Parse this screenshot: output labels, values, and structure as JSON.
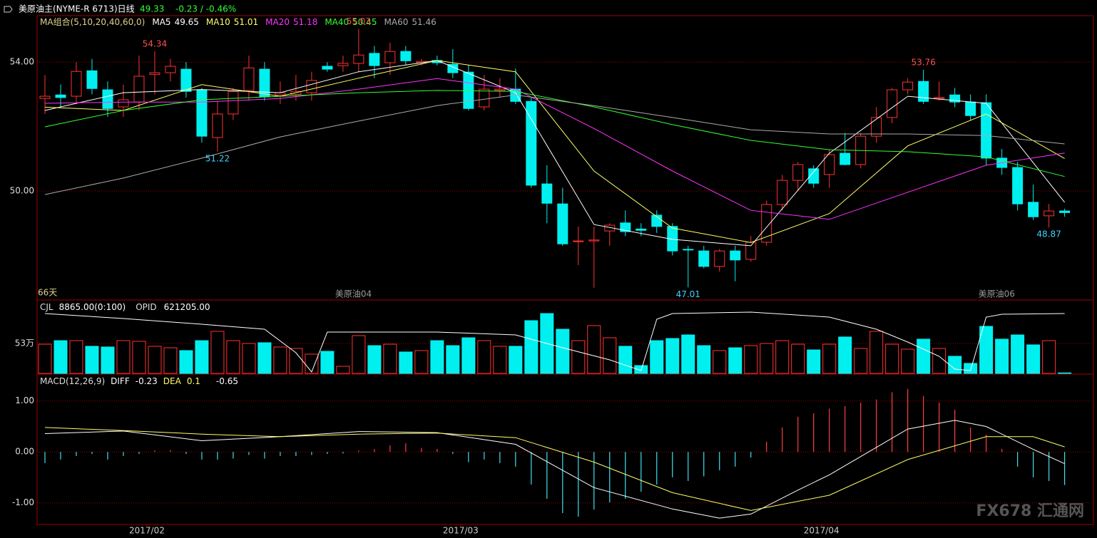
{
  "header": {
    "title": "美原油主(NYME-R 6713)日线",
    "price": "49.33",
    "change": "-0.23 / -0.46%"
  },
  "watermark": "FX678 汇通网",
  "chart_data": [
    {
      "type": "candlestick",
      "legend_title": "MA组合(5,10,20,40,60,0)",
      "period_label": "66天",
      "up_color": "#ff3232",
      "down_color": "#00f0f0",
      "xlim": [
        -0.5,
        66.7
      ],
      "ylim": [
        46.64,
        55.44
      ],
      "yticks": [
        {
          "value": 54,
          "label": "54.00"
        },
        {
          "value": 50,
          "label": "50.00"
        }
      ],
      "grid": true,
      "ohlc": [
        [
          52.87,
          53.6,
          52.39,
          52.94
        ],
        [
          52.98,
          53.3,
          52.6,
          52.9
        ],
        [
          52.94,
          54.0,
          52.7,
          53.71
        ],
        [
          53.73,
          54.1,
          53.0,
          53.18
        ],
        [
          53.14,
          53.4,
          52.3,
          52.56
        ],
        [
          52.61,
          53.3,
          52.3,
          52.83
        ],
        [
          52.76,
          54.2,
          52.5,
          53.56
        ],
        [
          53.62,
          54.34,
          53.0,
          53.67
        ],
        [
          53.67,
          54.1,
          53.4,
          53.87
        ],
        [
          53.78,
          54.0,
          52.9,
          53.09
        ],
        [
          53.14,
          53.2,
          51.5,
          51.7
        ],
        [
          51.66,
          52.8,
          51.22,
          52.39
        ],
        [
          52.39,
          53.2,
          52.2,
          53.09
        ],
        [
          53.12,
          54.2,
          52.8,
          53.82
        ],
        [
          53.78,
          54.0,
          52.8,
          52.92
        ],
        [
          52.98,
          53.4,
          52.7,
          53.05
        ],
        [
          53.0,
          53.6,
          52.8,
          53.09
        ],
        [
          53.05,
          53.7,
          52.8,
          53.43
        ],
        [
          53.87,
          54.0,
          53.7,
          53.78
        ],
        [
          53.89,
          54.2,
          53.7,
          53.96
        ],
        [
          53.96,
          55.03,
          53.7,
          54.22
        ],
        [
          54.27,
          54.5,
          53.5,
          53.89
        ],
        [
          53.98,
          54.6,
          53.6,
          54.33
        ],
        [
          54.33,
          54.5,
          53.9,
          54.04
        ],
        [
          53.98,
          54.1,
          53.9,
          54.02
        ],
        [
          54.05,
          54.2,
          53.9,
          53.98
        ],
        [
          53.93,
          54.4,
          53.5,
          53.67
        ],
        [
          53.69,
          53.9,
          52.5,
          52.56
        ],
        [
          52.61,
          53.6,
          52.5,
          53.16
        ],
        [
          53.12,
          53.5,
          52.9,
          53.16
        ],
        [
          53.16,
          53.8,
          52.7,
          52.78
        ],
        [
          52.78,
          52.9,
          50.1,
          50.18
        ],
        [
          50.22,
          50.8,
          49.0,
          49.62
        ],
        [
          49.6,
          50.1,
          48.3,
          48.36
        ],
        [
          48.43,
          48.9,
          47.7,
          48.45
        ],
        [
          48.45,
          48.9,
          47.0,
          48.48
        ],
        [
          48.76,
          49.0,
          48.3,
          48.94
        ],
        [
          49.01,
          49.4,
          48.6,
          48.74
        ],
        [
          48.82,
          49.0,
          48.6,
          48.78
        ],
        [
          49.25,
          49.4,
          48.7,
          48.9
        ],
        [
          48.9,
          49.0,
          48.0,
          48.14
        ],
        [
          48.19,
          48.3,
          47.01,
          48.17
        ],
        [
          48.14,
          48.3,
          47.6,
          47.66
        ],
        [
          47.66,
          48.2,
          47.5,
          48.14
        ],
        [
          48.14,
          48.3,
          47.2,
          47.86
        ],
        [
          47.88,
          48.6,
          47.8,
          48.41
        ],
        [
          48.41,
          49.7,
          48.3,
          49.58
        ],
        [
          49.58,
          50.5,
          49.4,
          50.33
        ],
        [
          50.33,
          50.9,
          50.0,
          50.82
        ],
        [
          50.69,
          50.8,
          50.1,
          50.24
        ],
        [
          50.51,
          51.3,
          50.1,
          51.13
        ],
        [
          51.17,
          51.8,
          50.8,
          50.82
        ],
        [
          50.82,
          51.8,
          50.7,
          51.7
        ],
        [
          51.7,
          52.6,
          51.5,
          52.28
        ],
        [
          52.28,
          53.2,
          52.1,
          53.14
        ],
        [
          53.14,
          53.5,
          53.0,
          53.38
        ],
        [
          53.4,
          53.76,
          52.7,
          52.78
        ],
        [
          52.87,
          53.4,
          52.8,
          52.9
        ],
        [
          52.98,
          53.2,
          52.6,
          52.76
        ],
        [
          52.76,
          53.0,
          52.2,
          52.34
        ],
        [
          52.74,
          53.0,
          50.8,
          51.02
        ],
        [
          51.02,
          51.3,
          50.5,
          50.73
        ],
        [
          50.73,
          50.9,
          49.4,
          49.6
        ],
        [
          49.65,
          50.2,
          49.1,
          49.2
        ],
        [
          49.23,
          49.6,
          48.87,
          49.38
        ],
        [
          49.38,
          49.45,
          49.2,
          49.33
        ]
      ],
      "series": [
        {
          "name": "MA5",
          "color": "#ffffff",
          "x": [
            0,
            5,
            10,
            15,
            20,
            25,
            30,
            35,
            40,
            45,
            50,
            55,
            60,
            65
          ],
          "values": [
            52.5,
            53.05,
            53.15,
            53.05,
            53.7,
            54.05,
            53.05,
            48.96,
            48.5,
            48.3,
            51.17,
            52.94,
            52.72,
            49.65
          ]
        },
        {
          "name": "MA10",
          "color": "#ffff66",
          "x": [
            0,
            5,
            10,
            15,
            20,
            25,
            30,
            35,
            40,
            45,
            50,
            55,
            60,
            65
          ],
          "values": [
            52.6,
            52.5,
            53.3,
            52.94,
            53.5,
            54.05,
            53.7,
            50.62,
            48.85,
            48.4,
            49.3,
            51.4,
            52.39,
            51.01
          ]
        },
        {
          "name": "MA20",
          "color": "#ff33ff",
          "x": [
            0,
            5,
            10,
            15,
            20,
            25,
            30,
            35,
            40,
            45,
            50,
            55,
            60,
            65
          ],
          "values": [
            52.72,
            52.76,
            52.76,
            52.87,
            53.16,
            53.49,
            53.16,
            51.94,
            50.62,
            49.4,
            49.12,
            49.96,
            50.8,
            51.18
          ]
        },
        {
          "name": "MA40",
          "color": "#33ff33",
          "x": [
            0,
            5,
            10,
            15,
            20,
            25,
            30,
            35,
            40,
            45,
            50,
            55,
            60,
            65
          ],
          "values": [
            51.99,
            52.5,
            52.83,
            52.94,
            53.05,
            53.12,
            53.09,
            52.61,
            52.06,
            51.57,
            51.28,
            51.22,
            51.06,
            50.45
          ]
        },
        {
          "name": "MA60",
          "color": "#aaaaaa",
          "x": [
            0,
            5,
            10,
            15,
            20,
            25,
            30,
            35,
            40,
            45,
            50,
            55,
            60,
            65
          ],
          "values": [
            49.89,
            50.4,
            51.02,
            51.68,
            52.17,
            52.65,
            52.98,
            52.65,
            52.28,
            51.9,
            51.77,
            51.77,
            51.72,
            51.46
          ]
        }
      ],
      "annotations": [
        {
          "x": 7,
          "value": 54.34,
          "color": "#ff5050"
        },
        {
          "x": 20,
          "value": 55.03,
          "color": "#ff5050"
        },
        {
          "x": 11,
          "value": 51.22,
          "color": "#40d0ff"
        },
        {
          "x": 41,
          "value": 47.01,
          "color": "#40d0ff"
        },
        {
          "x": 56,
          "value": 53.76,
          "color": "#ff5050"
        },
        {
          "x": 64,
          "value": 48.87,
          "color": "#40d0ff"
        }
      ],
      "contracts": [
        {
          "x": 18.5,
          "label": "美原油04"
        },
        {
          "x": 59.5,
          "label": "美原油06"
        }
      ]
    },
    {
      "type": "bar",
      "legend": [
        "CJL",
        "8865.00(0:100)",
        "621205.00"
      ],
      "xlim": [
        -0.5,
        66.7
      ],
      "ylim": [
        0,
        128.7
      ],
      "yticks": [
        {
          "value": 53,
          "label": "53万"
        }
      ],
      "y2lim": [
        500000,
        647190
      ],
      "values": [
        51.7,
        58.0,
        58.0,
        48.0,
        46.7,
        58.0,
        56.8,
        48.0,
        45.4,
        40.4,
        58.0,
        74.5,
        58.0,
        53.0,
        54.3,
        46.7,
        44.2,
        34.1,
        39.1,
        12.6,
        66.9,
        49.2,
        51.7,
        37.9,
        40.4,
        58.0,
        49.2,
        63.1,
        58.0,
        48.0,
        48.0,
        93.4,
        106.0,
        78.2,
        58.0,
        84.6,
        63.1,
        48.0,
        13.9,
        58.0,
        61.8,
        68.1,
        49.2,
        40.4,
        45.4,
        49.2,
        53.0,
        58.0,
        51.7,
        41.6,
        51.7,
        64.4,
        44.2,
        74.5,
        51.7,
        42.9,
        60.6,
        44.2,
        30.3,
        17.7,
        83.3,
        60.6,
        68.1,
        50.5,
        58.0,
        0.89
      ],
      "series": [
        {
          "name": "OPID",
          "color": "#ffffff",
          "axis": "y2",
          "x": [
            0,
            5,
            10,
            14,
            16,
            17,
            18,
            25,
            30,
            33,
            36,
            38,
            39,
            40,
            45,
            50,
            53,
            55,
            57,
            58,
            59,
            60,
            61,
            65
          ],
          "values": [
            621212,
            611111,
            599567,
            589466,
            541847,
            502886,
            583694,
            583694,
            577922,
            551948,
            527417,
            505772,
            609668,
            621212,
            624098,
            613997,
            589466,
            563492,
            534632,
            508658,
            505772,
            613997,
            619769,
            621205
          ]
        }
      ]
    },
    {
      "type": "macd",
      "legend_title": "MACD(12,26,9)",
      "xlim": [
        -0.5,
        66.7
      ],
      "ylim": [
        -1.41,
        1.5
      ],
      "yticks": [
        {
          "value": 1,
          "label": "1.00"
        },
        {
          "value": 0,
          "label": "0.00"
        },
        {
          "value": -1,
          "label": "-1.00"
        }
      ],
      "grid": true,
      "xticks": [
        {
          "value": 6.5,
          "label": "2017/02"
        },
        {
          "value": 26.5,
          "label": "2017/03"
        },
        {
          "value": 49.5,
          "label": "2017/04"
        }
      ],
      "histogram": {
        "up_color": "#ff4040",
        "down_color": "#40e0f0",
        "values": [
          -0.22,
          -0.15,
          -0.08,
          -0.04,
          -0.15,
          -0.08,
          -0.04,
          0.03,
          0.04,
          -0.04,
          -0.15,
          -0.15,
          -0.13,
          -0.06,
          -0.13,
          -0.08,
          -0.08,
          -0.06,
          -0.04,
          -0.03,
          0.03,
          0.06,
          0.13,
          0.17,
          0.08,
          0.06,
          -0.04,
          -0.2,
          -0.15,
          -0.22,
          -0.29,
          -0.64,
          -0.92,
          -1.2,
          -1.27,
          -1.13,
          -0.99,
          -0.92,
          -0.78,
          -0.64,
          -0.5,
          -0.57,
          -0.48,
          -0.36,
          -0.29,
          -0.11,
          0.2,
          0.48,
          0.69,
          0.76,
          0.85,
          0.9,
          0.97,
          1.03,
          1.17,
          1.24,
          1.1,
          0.97,
          0.83,
          0.48,
          0.34,
          0.06,
          -0.29,
          -0.5,
          -0.57,
          -0.65
        ]
      },
      "series": [
        {
          "name": "DIFF",
          "color": "#ffffff",
          "x": [
            0,
            5,
            10,
            15,
            20,
            25,
            30,
            35,
            40,
            43,
            45,
            48,
            50,
            55,
            58,
            60,
            63,
            65
          ],
          "values": [
            0.36,
            0.41,
            0.22,
            0.3,
            0.4,
            0.38,
            0.15,
            -0.7,
            -1.12,
            -1.3,
            -1.22,
            -0.75,
            -0.45,
            0.45,
            0.62,
            0.5,
            0.05,
            -0.23
          ]
        },
        {
          "name": "DEA",
          "color": "#ffff66",
          "x": [
            0,
            5,
            10,
            15,
            20,
            25,
            30,
            35,
            40,
            45,
            50,
            55,
            60,
            63,
            65
          ],
          "values": [
            0.48,
            0.42,
            0.35,
            0.3,
            0.35,
            0.37,
            0.28,
            -0.2,
            -0.8,
            -1.15,
            -0.85,
            -0.15,
            0.3,
            0.3,
            0.1
          ]
        }
      ]
    }
  ]
}
